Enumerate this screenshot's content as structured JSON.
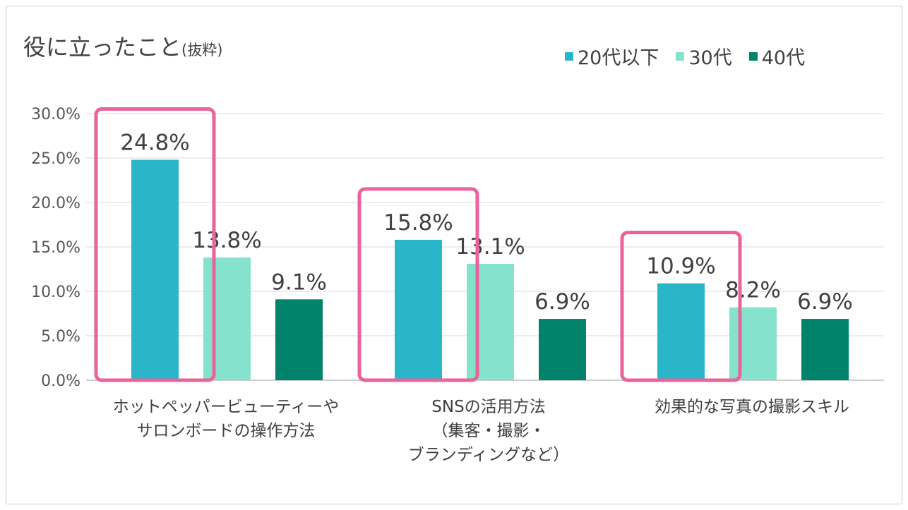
{
  "title": "役に立ったこと",
  "subtitle": "(抜粋)",
  "chart_data": {
    "type": "bar",
    "categories": [
      "ホットペッパービューティーや\nサロンボードの操作方法",
      "SNSの活用方法\n（集客・撮影・\nブランディングなど）",
      "効果的な写真の撮影スキル"
    ],
    "series": [
      {
        "name": "20代以下",
        "color": "#29b6c8",
        "values": [
          24.8,
          15.8,
          10.9
        ],
        "labels": [
          "24.8%",
          "15.8%",
          "10.9%"
        ]
      },
      {
        "name": "30代",
        "color": "#85e2cc",
        "values": [
          13.8,
          13.1,
          8.2
        ],
        "labels": [
          "13.8%",
          "13.1%",
          "8.2%"
        ]
      },
      {
        "name": "40代",
        "color": "#00836a",
        "values": [
          9.1,
          6.9,
          6.9
        ],
        "labels": [
          "9.1%",
          "6.9%",
          "6.9%"
        ]
      }
    ],
    "ylim": [
      0,
      30
    ],
    "yticks": [
      "0.0%",
      "5.0%",
      "10.0%",
      "15.0%",
      "20.0%",
      "25.0%",
      "30.0%"
    ],
    "grid": true,
    "legend_position": "top-right",
    "highlight_series": "20代以下",
    "highlight_color": "#e8649b"
  }
}
